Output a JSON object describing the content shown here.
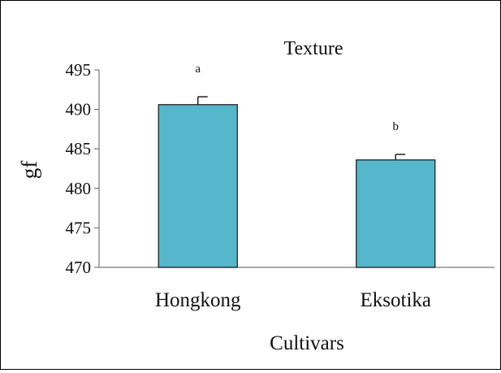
{
  "chart_data": {
    "type": "bar",
    "title": "Texture",
    "xlabel": "Cultivars",
    "ylabel": "gf",
    "ylim": [
      470,
      495
    ],
    "yticks": [
      470,
      475,
      480,
      485,
      490,
      495
    ],
    "categories": [
      "Hongkong",
      "Eksotika"
    ],
    "values": [
      490.6,
      483.6
    ],
    "errors": [
      1.0,
      0.7
    ],
    "significance": [
      "a",
      "b"
    ],
    "bar_color": "#56B7CC",
    "grid": false
  }
}
